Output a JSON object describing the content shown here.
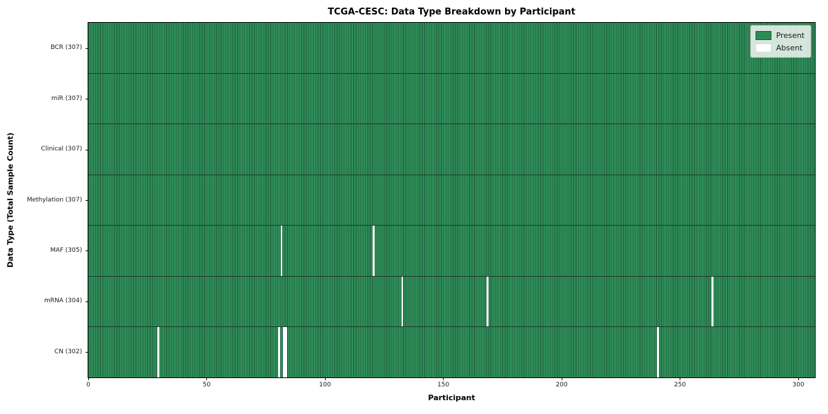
{
  "chart_data": {
    "type": "heatmap",
    "title": "TCGA-CESC: Data Type Breakdown by Participant",
    "xlabel": "Participant",
    "ylabel": "Data Type (Total Sample Count)",
    "n_participants": 307,
    "xlim": [
      0,
      307
    ],
    "x_ticks": [
      0,
      50,
      100,
      150,
      200,
      250,
      300
    ],
    "grid": false,
    "legend_position": "upper-right",
    "legend": [
      {
        "label": "Present",
        "color": "#2e8b57"
      },
      {
        "label": "Absent",
        "color": "#ffffff"
      }
    ],
    "rows": [
      {
        "label": "BCR",
        "count": 307,
        "display": "BCR (307)",
        "absent_participants": []
      },
      {
        "label": "miR",
        "count": 307,
        "display": "miR (307)",
        "absent_participants": []
      },
      {
        "label": "Clinical",
        "count": 307,
        "display": "Clinical (307)",
        "absent_participants": []
      },
      {
        "label": "Methylation",
        "count": 307,
        "display": "Methylation (307)",
        "absent_participants": []
      },
      {
        "label": "MAF",
        "count": 305,
        "display": "MAF (305)",
        "absent_participants": [
          81,
          120
        ]
      },
      {
        "label": "mRNA",
        "count": 304,
        "display": "mRNA (304)",
        "absent_participants": [
          132,
          168,
          263
        ]
      },
      {
        "label": "CN",
        "count": 302,
        "display": "CN (302)",
        "absent_participants": [
          29,
          80,
          82,
          83,
          240
        ]
      }
    ],
    "colors": {
      "present": "#2e8b57",
      "absent": "#ffffff",
      "cell_edge": "#1d5c3c",
      "row_separator": "#20382a",
      "plot_border": "#000000"
    }
  }
}
